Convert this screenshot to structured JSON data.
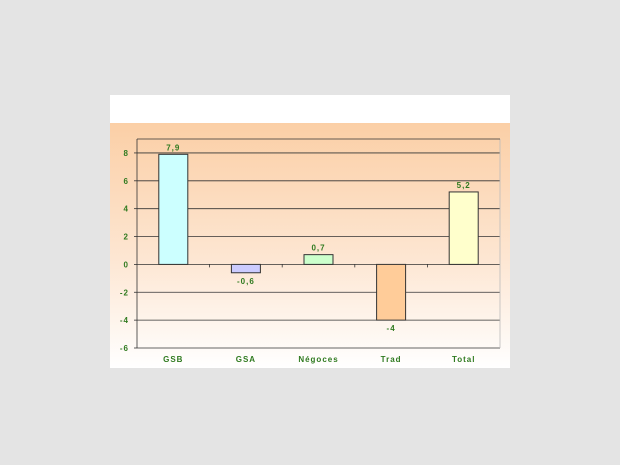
{
  "chart_data": {
    "type": "bar",
    "title": "",
    "xlabel": "",
    "ylabel": "",
    "categories": [
      "GSB",
      "GSA",
      "Négoces",
      "Trad",
      "Total"
    ],
    "values": [
      7.9,
      -0.6,
      0.7,
      -4,
      5.2
    ],
    "data_labels": [
      "7,9",
      "-0,6",
      "0,7",
      "-4",
      "5,2"
    ],
    "bar_colors": [
      "#ccffff",
      "#ccccff",
      "#ccffcc",
      "#ffcc99",
      "#ffffcc"
    ],
    "ylim": [
      -6,
      9
    ],
    "yticks": [
      -6,
      -4,
      -2,
      0,
      2,
      4,
      6,
      8
    ],
    "grid": true,
    "legend": "none",
    "text_color": "#2f7a1f"
  }
}
